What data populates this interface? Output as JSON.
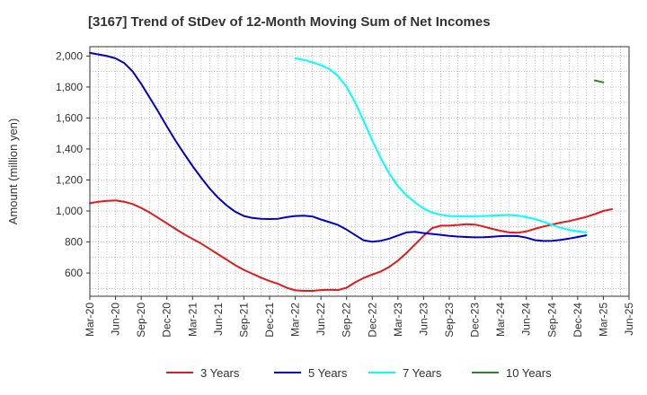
{
  "chart_data": {
    "type": "line",
    "title": "[3167]  Trend of StDev of 12-Month Moving Sum of Net Incomes",
    "ylabel": "Amount (million yen)",
    "xlabel": "",
    "ylim": [
      450,
      2060
    ],
    "yticks": [
      600,
      800,
      1000,
      1200,
      1400,
      1600,
      1800,
      2000
    ],
    "yticklabels": [
      "600",
      "800",
      "1,000",
      "1,200",
      "1,400",
      "1,600",
      "1,800",
      "2,000"
    ],
    "xticks": [
      "Mar-20",
      "Jun-20",
      "Sep-20",
      "Dec-20",
      "Mar-21",
      "Jun-21",
      "Sep-21",
      "Dec-21",
      "Mar-22",
      "Jun-22",
      "Sep-22",
      "Dec-22",
      "Mar-23",
      "Jun-23",
      "Sep-23",
      "Dec-23",
      "Mar-24",
      "Jun-24",
      "Sep-24",
      "Dec-24",
      "Mar-25",
      "Jun-25"
    ],
    "grid": true,
    "legend_position": "bottom",
    "series": [
      {
        "name": "3 Years",
        "color": "#e31a1c",
        "start": "Mar-20",
        "values": [
          1050,
          1060,
          1065,
          1068,
          1060,
          1045,
          1020,
          990,
          955,
          920,
          885,
          850,
          820,
          790,
          755,
          720,
          685,
          650,
          620,
          595,
          570,
          548,
          530,
          505,
          488,
          485,
          485,
          490,
          492,
          490,
          505,
          540,
          568,
          590,
          610,
          640,
          680,
          730,
          785,
          840,
          890,
          905,
          905,
          910,
          915,
          912,
          900,
          885,
          872,
          862,
          860,
          868,
          885,
          900,
          912,
          925,
          935,
          948,
          962,
          980,
          1000,
          1012
        ]
      },
      {
        "name": "5 Years",
        "color": "#0000cc",
        "start": "Mar-20",
        "values": [
          2020,
          2010,
          2000,
          1985,
          1955,
          1900,
          1820,
          1730,
          1640,
          1545,
          1455,
          1370,
          1290,
          1215,
          1145,
          1085,
          1035,
          995,
          968,
          955,
          950,
          948,
          950,
          960,
          968,
          970,
          965,
          945,
          928,
          910,
          880,
          845,
          810,
          802,
          808,
          822,
          842,
          862,
          866,
          858,
          852,
          846,
          840,
          835,
          832,
          830,
          831,
          834,
          838,
          840,
          838,
          828,
          812,
          807,
          808,
          813,
          822,
          832,
          843
        ]
      },
      {
        "name": "7 Years",
        "color": "#00ffff",
        "start": "Mar-22",
        "values": [
          1985,
          1975,
          1960,
          1940,
          1915,
          1870,
          1800,
          1700,
          1580,
          1455,
          1340,
          1240,
          1160,
          1100,
          1055,
          1015,
          990,
          975,
          968,
          966,
          966,
          966,
          968,
          970,
          972,
          974,
          970,
          960,
          948,
          930,
          910,
          892,
          878,
          868,
          862
        ]
      },
      {
        "name": "10 Years",
        "color": "#228b22",
        "start": "Feb-25",
        "values": [
          1842,
          1830
        ]
      }
    ]
  }
}
